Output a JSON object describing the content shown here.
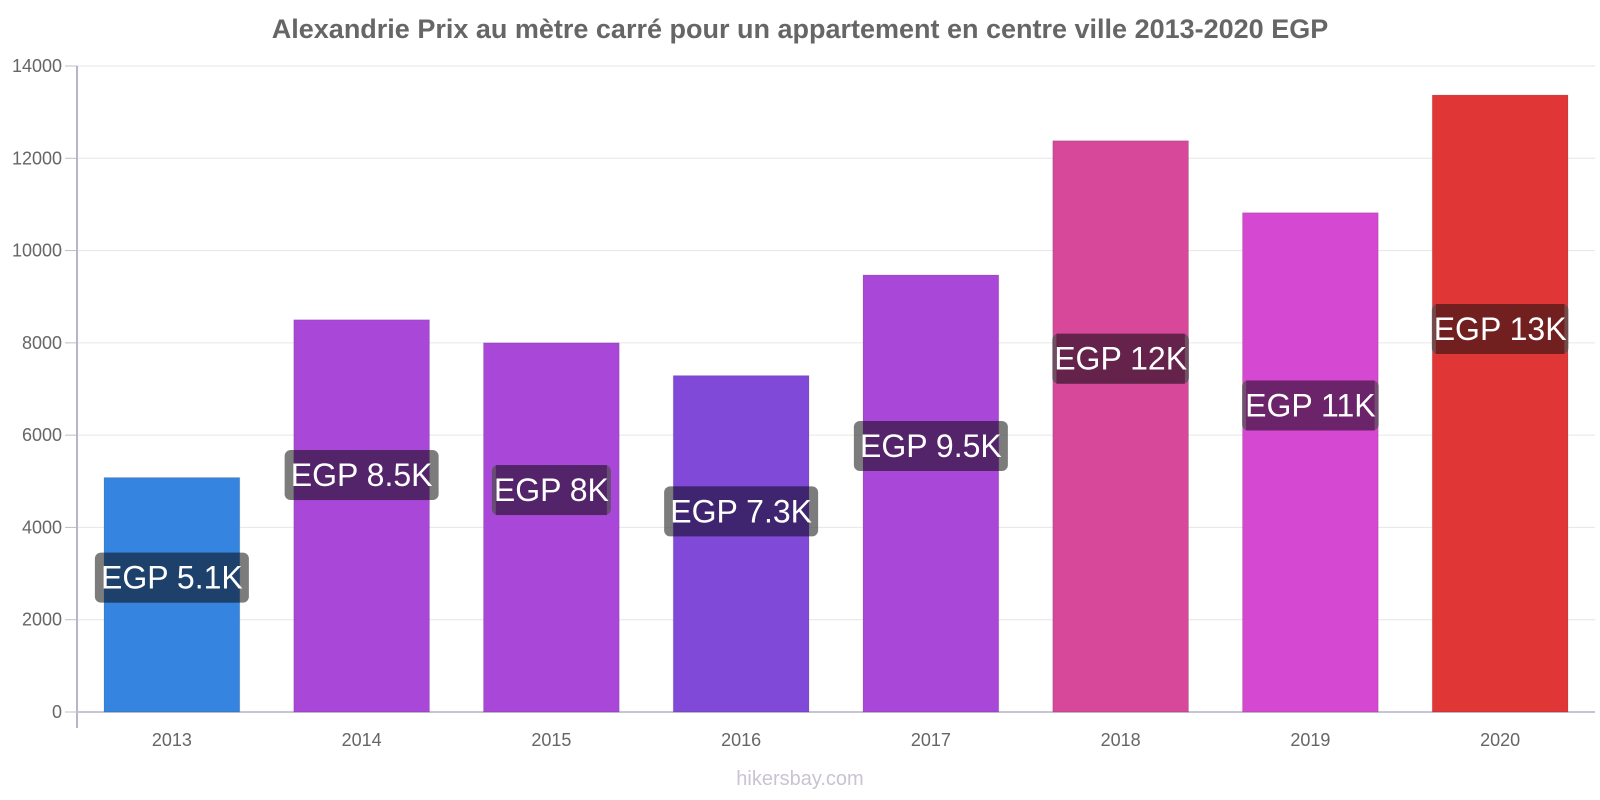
{
  "chart_data": {
    "type": "bar",
    "title": "Alexandrie Prix au mètre carré pour un appartement en centre ville 2013-2020 EGP",
    "xlabel": "",
    "ylabel": "",
    "categories": [
      "2013",
      "2014",
      "2015",
      "2016",
      "2017",
      "2018",
      "2019",
      "2020"
    ],
    "values": [
      5080,
      8500,
      8000,
      7290,
      9470,
      12380,
      10820,
      13370
    ],
    "data_labels": [
      "EGP 5.1K",
      "EGP 8.5K",
      "EGP 8K",
      "EGP 7.3K",
      "EGP 9.5K",
      "EGP 12K",
      "EGP 11K",
      "EGP 13K"
    ],
    "bar_colors": [
      "#3584e0",
      "#a948d8",
      "#a948d8",
      "#8049d8",
      "#a948d8",
      "#d7489b",
      "#d548d2",
      "#e03636"
    ],
    "label_colors": [
      "#1b3f6b",
      "#532169",
      "#532169",
      "#3d2270",
      "#532169",
      "#64204a",
      "#6a2068",
      "#721c1c"
    ],
    "ylim": [
      0,
      14000
    ],
    "yticks": [
      0,
      2000,
      4000,
      6000,
      8000,
      10000,
      12000,
      14000
    ],
    "ytick_labels": [
      "0",
      "2000",
      "4000",
      "6000",
      "8000",
      "10000",
      "12000",
      "14000"
    ],
    "grid": true,
    "legend": "none"
  },
  "footer": {
    "source": "hikersbay.com"
  }
}
